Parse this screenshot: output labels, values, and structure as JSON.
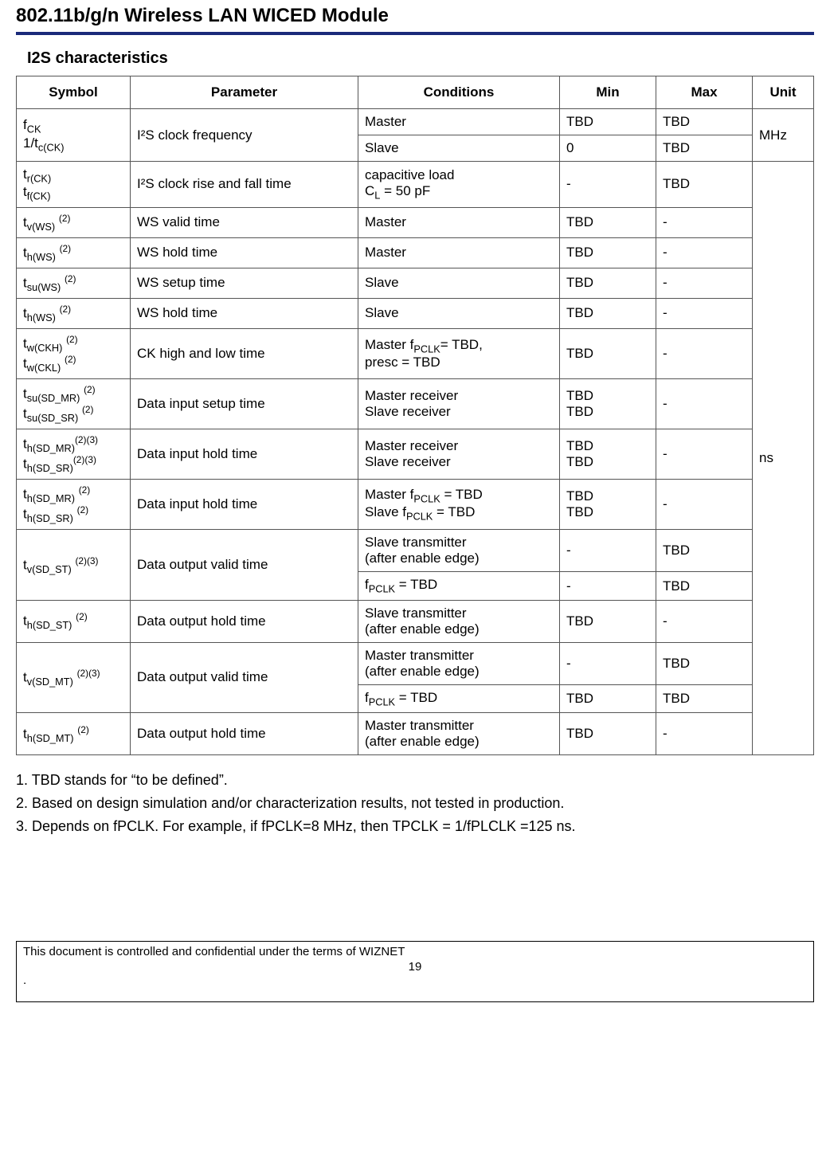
{
  "header": {
    "title": "802.11b/g/n Wireless LAN WICED Module"
  },
  "section": {
    "title": "I2S characteristics"
  },
  "table": {
    "columns": [
      "Symbol",
      "Parameter",
      "Conditions",
      "Min",
      "Max",
      "Unit"
    ],
    "rows": [
      {
        "symbol_html": "f<sub>CK</sub><br>1/t<sub>c(CK)</sub>",
        "parameter": "I²S clock frequency",
        "parameter_rowspan": 2,
        "conditions": "Master",
        "min": "TBD",
        "max": "TBD",
        "unit": "MHz",
        "unit_rowspan": 2,
        "symbol_rowspan": 2
      },
      {
        "conditions": "Slave",
        "min": "0",
        "max": "TBD"
      },
      {
        "symbol_html": "t<sub>r(CK)</sub><br>t<sub>f(CK)</sub>",
        "parameter": "I²S clock rise and fall time",
        "conditions_html": "capacitive load<br>C<sub>L</sub> = 50 pF",
        "min": "-",
        "max": "TBD",
        "unit": "ns",
        "unit_rowspan": 15
      },
      {
        "symbol_html": "t<sub>v(WS)</sub> <sup>(2)</sup>",
        "parameter": "WS valid time",
        "conditions": "Master",
        "min": "TBD",
        "max": "-"
      },
      {
        "symbol_html": "t<sub>h(WS)</sub> <sup>(2)</sup>",
        "parameter": "WS hold time",
        "conditions": "Master",
        "min": "TBD",
        "max": "-"
      },
      {
        "symbol_html": "t<sub>su(WS)</sub> <sup>(2)</sup>",
        "parameter": "WS setup time",
        "conditions": "Slave",
        "min": "TBD",
        "max": "-"
      },
      {
        "symbol_html": "t<sub>h(WS)</sub> <sup>(2)</sup>",
        "parameter": "WS hold time",
        "conditions": "Slave",
        "min": "TBD",
        "max": "-"
      },
      {
        "symbol_html": "t<sub>w(CKH)</sub> <sup>(2)</sup><br>t<sub>w(CKL)</sub> <sup>(2)</sup>",
        "parameter": "CK high and low time",
        "conditions_html": "Master f<sub>PCLK</sub>= TBD,<br>presc = TBD",
        "min": "TBD",
        "max": "-"
      },
      {
        "symbol_html": "t<sub>su(SD_MR)</sub> <sup>(2)</sup><br>t<sub>su(SD_SR)</sub> <sup>(2)</sup>",
        "parameter": "Data input setup time",
        "conditions_html": "Master receiver<br>Slave receiver",
        "min_html": "TBD<br>TBD",
        "max": "-"
      },
      {
        "symbol_html": "t<sub>h(SD_MR)</sub><sup>(2)(3)</sup><br>t<sub>h(SD_SR)</sub><sup>(2)(3)</sup>",
        "parameter": "Data input hold time",
        "conditions_html": "Master receiver<br>Slave receiver",
        "min_html": "TBD<br>TBD",
        "max": "-"
      },
      {
        "symbol_html": "t<sub>h(SD_MR)</sub> <sup>(2)</sup><br>t<sub>h(SD_SR)</sub> <sup>(2)</sup>",
        "parameter": "Data input hold time",
        "conditions_html": "Master f<sub>PCLK</sub> = TBD<br>Slave f<sub>PCLK</sub> = TBD",
        "min_html": "TBD<br>TBD",
        "max": "-"
      },
      {
        "symbol_html": "t<sub>v(SD_ST)</sub> <sup>(2)(3)</sup>",
        "symbol_rowspan": 2,
        "parameter": "Data output valid time",
        "parameter_rowspan": 2,
        "conditions_html": "Slave transmitter<br>(after enable edge)",
        "min": "-",
        "max": "TBD"
      },
      {
        "conditions_html": "f<sub>PCLK</sub> = TBD",
        "min": "-",
        "max": "TBD"
      },
      {
        "symbol_html": "t<sub>h(SD_ST)</sub> <sup>(2)</sup>",
        "parameter": "Data output hold time",
        "conditions_html": "Slave transmitter<br>(after enable edge)",
        "min": "TBD",
        "max": "-"
      },
      {
        "symbol_html": "t<sub>v(SD_MT)</sub> <sup>(2)(3)</sup>",
        "symbol_rowspan": 2,
        "parameter": "Data output valid time",
        "parameter_rowspan": 2,
        "conditions_html": "Master transmitter<br>(after enable edge)",
        "min": "-",
        "max": "TBD"
      },
      {
        "conditions_html": "f<sub>PCLK</sub> = TBD",
        "min": "TBD",
        "max": "TBD"
      },
      {
        "symbol_html": "t<sub>h(SD_MT)</sub> <sup>(2)</sup>",
        "parameter": "Data output hold time",
        "conditions_html": "Master transmitter<br>(after enable edge)",
        "min": "TBD",
        "max": "-"
      }
    ]
  },
  "notes": {
    "n1": "1. TBD stands for “to be defined”.",
    "n2": "2. Based on design simulation and/or characterization results, not tested in production.",
    "n3": "3. Depends on fPCLK. For example, if fPCLK=8 MHz, then TPCLK = 1/fPLCLK =125 ns."
  },
  "footer": {
    "text": "This document is controlled and confidential under the terms of WIZNET",
    "page": "19",
    "dot": "."
  }
}
